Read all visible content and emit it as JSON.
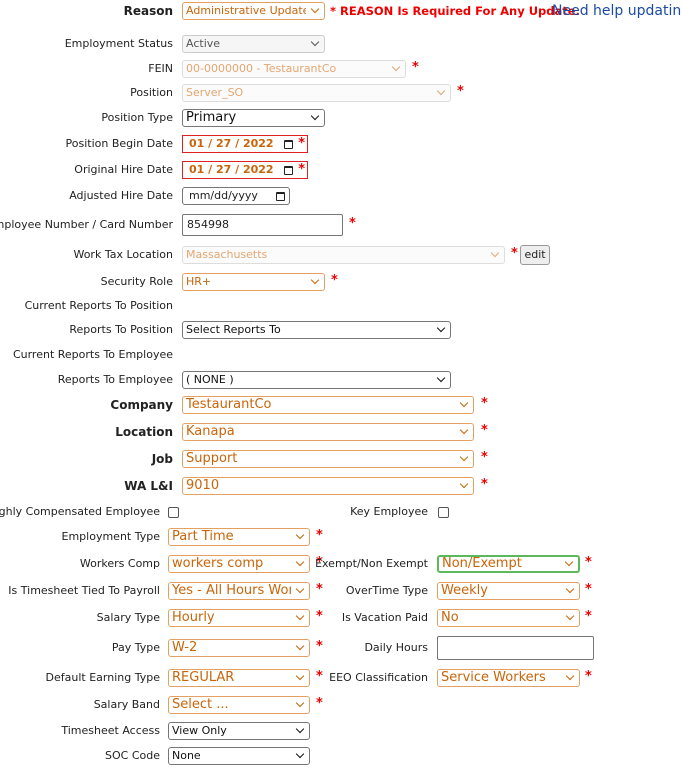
{
  "header": {
    "reason_note": "* REASON Is Required For Any Update.",
    "help_link": "Need help updating?"
  },
  "required_mark": "*",
  "edit_button": "edit",
  "fields": [
    {
      "label": "Reason",
      "value": "Administrative Update"
    },
    {
      "label": "Employment Status",
      "value": "Active"
    },
    {
      "label": "FEIN",
      "value": "00-0000000 - TestaurantCo"
    },
    {
      "label": "Position",
      "value": "Server_SO"
    },
    {
      "label": "Position Type",
      "value": "Primary"
    },
    {
      "label": "Position Begin Date",
      "value": "01 / 27 / 2022"
    },
    {
      "label": "Original Hire Date",
      "value": "01 / 27 / 2022"
    },
    {
      "label": "Adjusted Hire Date",
      "value": "mm/dd/yyyy"
    },
    {
      "label": "Employee Number / Card Number",
      "value": "854998"
    },
    {
      "label": "Work Tax Location",
      "value": "Massachusetts"
    },
    {
      "label": "Security Role",
      "value": "HR+"
    },
    {
      "label": "Current Reports To Position"
    },
    {
      "label": "Reports To Position",
      "value": "Select Reports To"
    },
    {
      "label": "Current Reports To Employee"
    },
    {
      "label": "Reports To Employee",
      "value": "( NONE )"
    },
    {
      "label": "Company",
      "value": "TestaurantCo"
    },
    {
      "label": "Location",
      "value": "Kanapa"
    },
    {
      "label": "Job",
      "value": "Support"
    },
    {
      "label": "WA L&I",
      "value": "9010"
    },
    {
      "label": "Highly Compensated Employee"
    },
    {
      "label": "Key Employee"
    },
    {
      "label": "Employment Type",
      "value": "Part Time"
    },
    {
      "label": "Workers Comp",
      "value": "workers comp"
    },
    {
      "label": "Exempt/Non Exempt",
      "value": "Non/Exempt"
    },
    {
      "label": "Is Timesheet Tied To Payroll",
      "value": "Yes - All Hours Worked"
    },
    {
      "label": "OverTime Type",
      "value": "Weekly"
    },
    {
      "label": "Salary Type",
      "value": "Hourly"
    },
    {
      "label": "Is Vacation Paid",
      "value": "No"
    },
    {
      "label": "Pay Type",
      "value": "W-2"
    },
    {
      "label": "Daily Hours"
    },
    {
      "label": "Default Earning Type",
      "value": "REGULAR"
    },
    {
      "label": "EEO Classification",
      "value": "Service Workers"
    },
    {
      "label": "Salary Band",
      "value": "Select ..."
    },
    {
      "label": "Timesheet Access",
      "value": "View Only"
    },
    {
      "label": "SOC Code",
      "value": "None"
    }
  ]
}
